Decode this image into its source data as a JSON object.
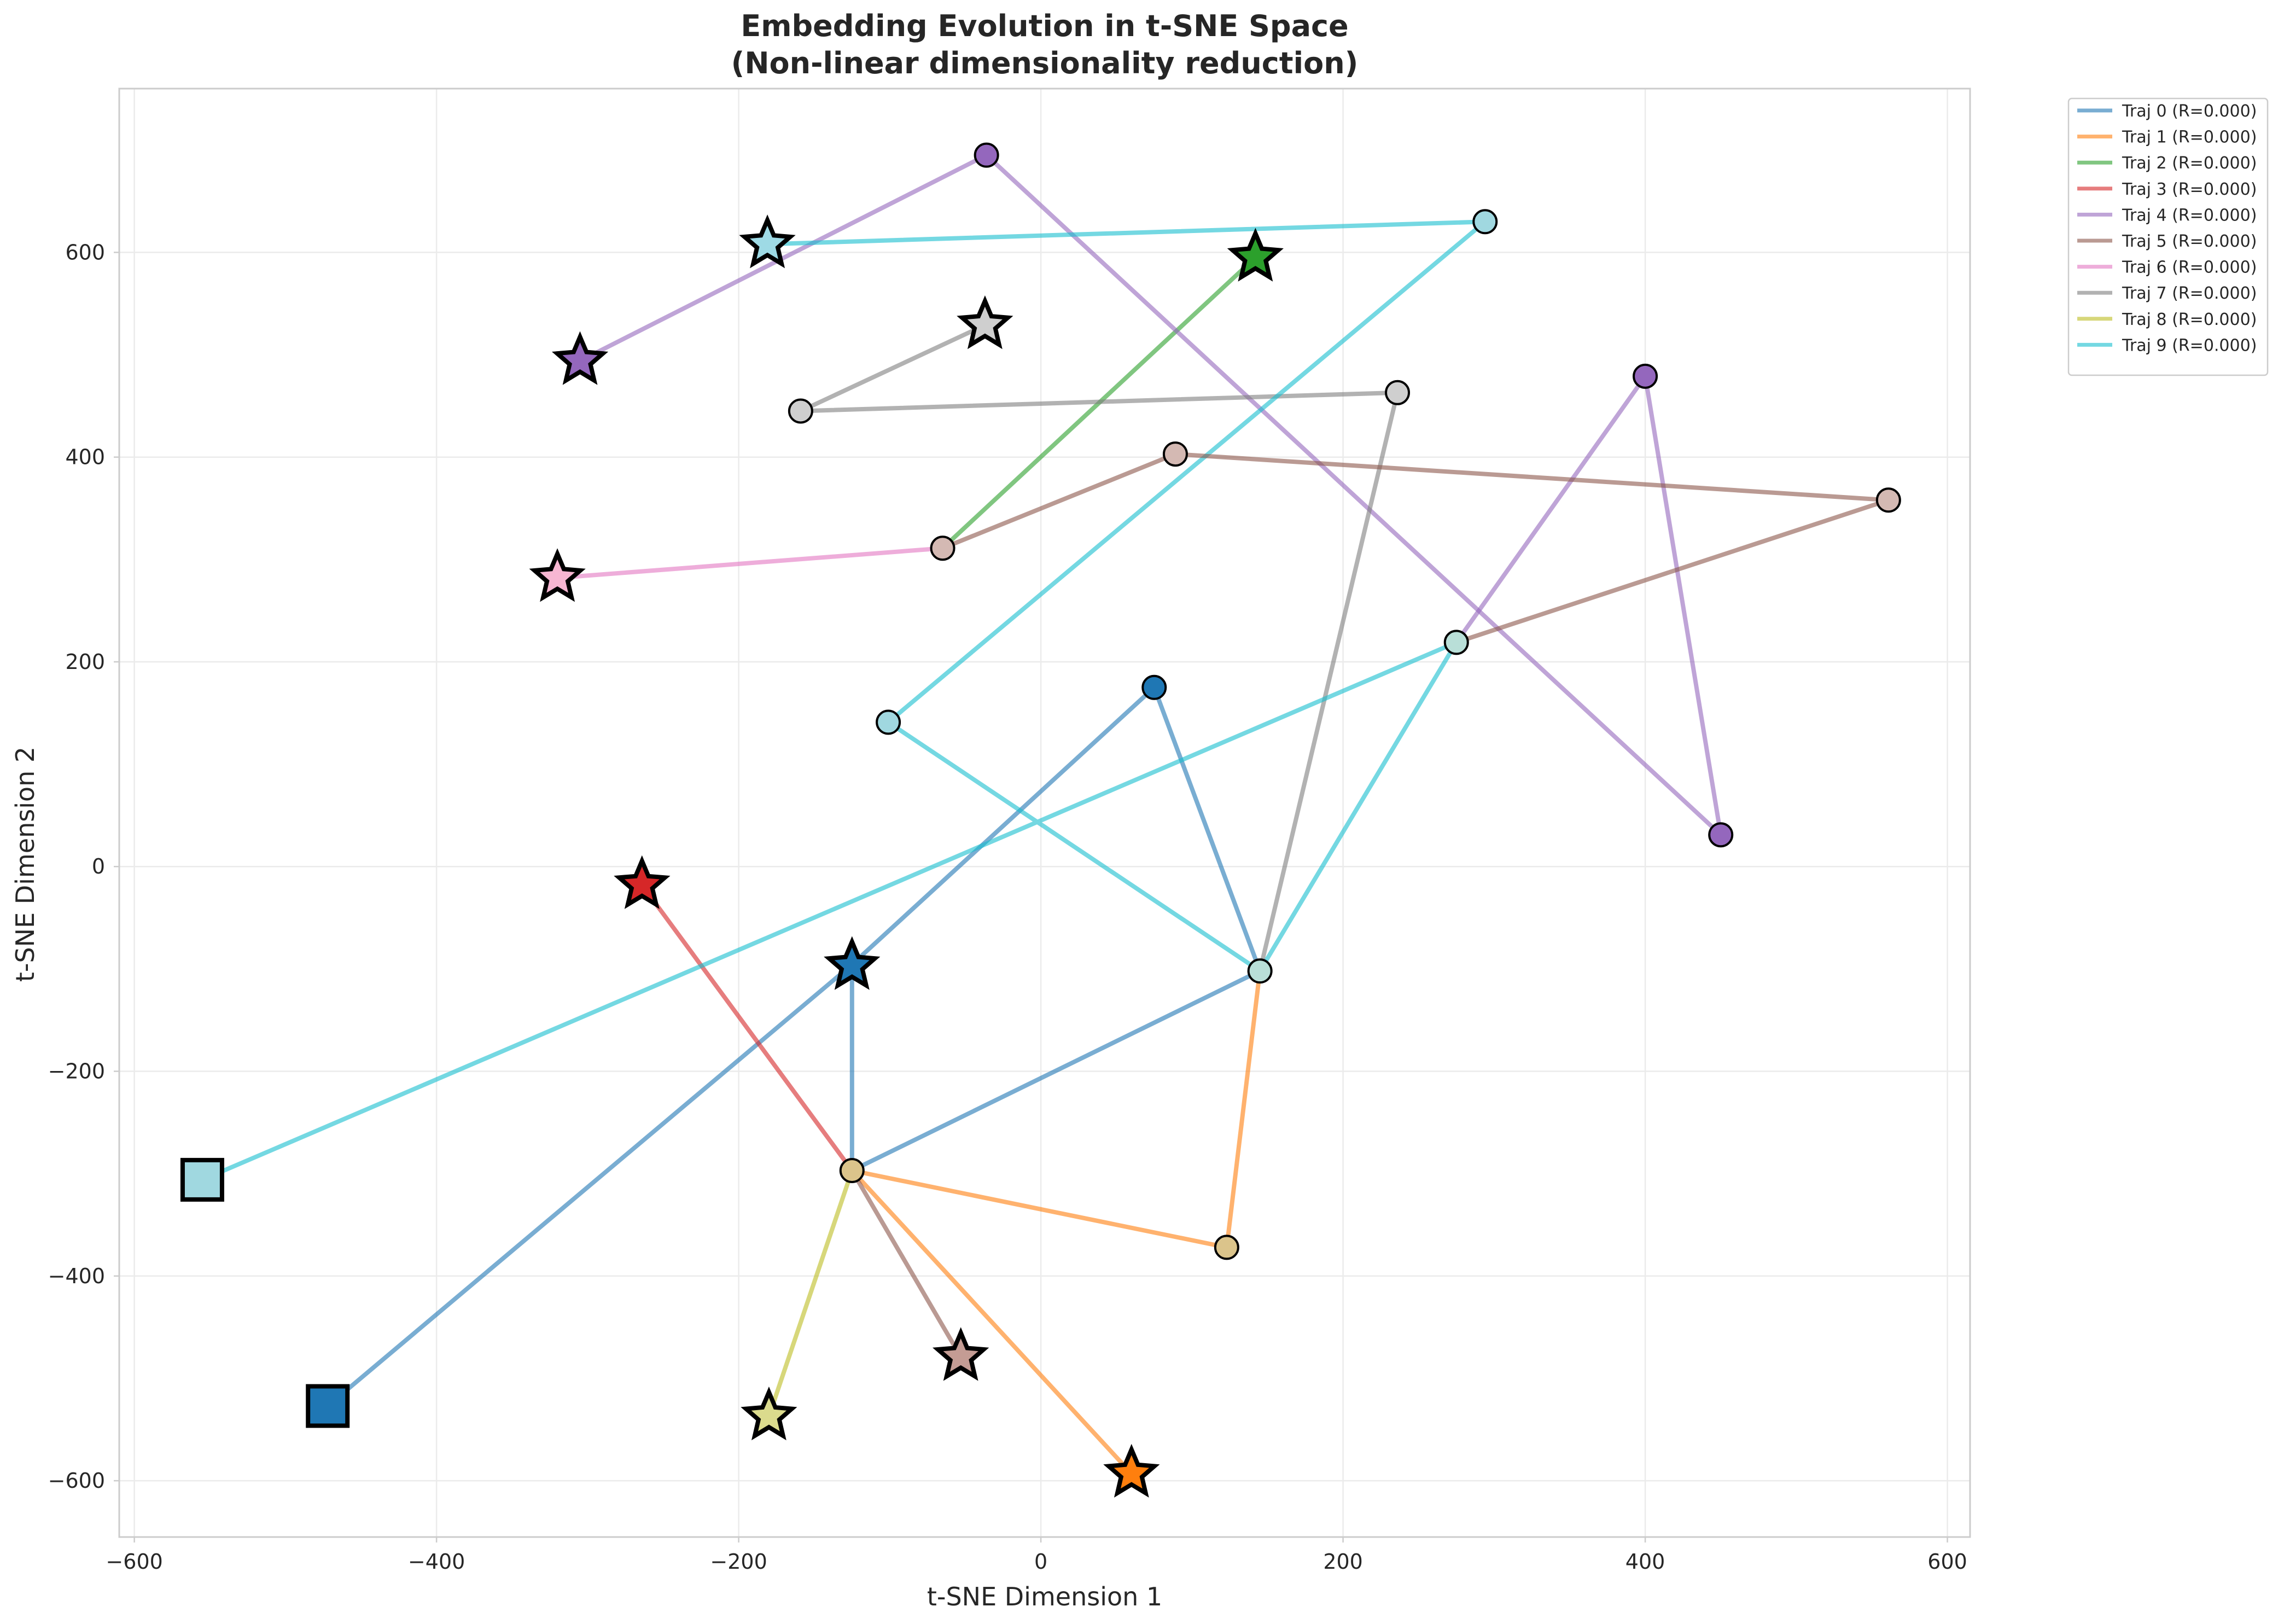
{
  "chart_data": {
    "type": "line",
    "title": "Embedding Evolution in t-SNE Space",
    "subtitle": "(Non-linear dimensionality reduction)",
    "xlabel": "t-SNE Dimension 1",
    "ylabel": "t-SNE Dimension 2",
    "xlim": [
      -610,
      615
    ],
    "ylim": [
      -655,
      760
    ],
    "xticks": [
      -600,
      -400,
      -200,
      0,
      200,
      400,
      600
    ],
    "yticks": [
      -600,
      -400,
      -200,
      0,
      200,
      400,
      600
    ],
    "xtick_labels": [
      "−600",
      "−400",
      "−200",
      "0",
      "200",
      "400",
      "600"
    ],
    "ytick_labels": [
      "−600",
      "−400",
      "−200",
      "0",
      "200",
      "400",
      "600"
    ],
    "grid": true,
    "legend_position": "outside top-right",
    "markers": "square = first point, circle = intermediate points, star = last point",
    "series": [
      {
        "name": "Traj 0 (R=0.000)",
        "color": "#1f77b4",
        "points": [
          [
            -472,
            -527
          ],
          [
            -126,
            -97
          ],
          [
            75,
            175
          ],
          [
            145,
            -102
          ],
          [
            -125,
            -297
          ],
          [
            -125,
            -97
          ]
        ]
      },
      {
        "name": "Traj 1 (R=0.000)",
        "color": "#ff7f0e",
        "points": [
          [
            145,
            -102
          ],
          [
            123,
            -372
          ],
          [
            -125,
            -297
          ],
          [
            60,
            -593
          ]
        ]
      },
      {
        "name": "Traj 2 (R=0.000)",
        "color": "#2ca02c",
        "points": [
          [
            -65,
            311
          ],
          [
            142,
            595
          ]
        ]
      },
      {
        "name": "Traj 3 (R=0.000)",
        "color": "#d62728",
        "points": [
          [
            -125,
            -297
          ],
          [
            -264,
            -18
          ]
        ]
      },
      {
        "name": "Traj 4 (R=0.000)",
        "color": "#9467bd",
        "points": [
          [
            450,
            31
          ],
          [
            -36,
            695
          ],
          [
            -305,
            494
          ]
        ]
      },
      {
        "name": "Traj 5 (R=0.000)",
        "color": "#8c564b",
        "points": [
          [
            -125,
            -297
          ],
          [
            -53,
            -479
          ]
        ]
      },
      {
        "name": "Traj 6 (R=0.000)",
        "color": "#e377c2",
        "points": [
          [
            -65,
            311
          ],
          [
            -320,
            282
          ]
        ]
      },
      {
        "name": "Traj 7 (R=0.000)",
        "color": "#7f7f7f",
        "points": [
          [
            145,
            -102
          ],
          [
            236,
            463
          ],
          [
            -159,
            445
          ],
          [
            -37,
            529
          ]
        ]
      },
      {
        "name": "Traj 8 (R=0.000)",
        "color": "#bcbd22",
        "points": [
          [
            -125,
            -297
          ],
          [
            -180,
            -537
          ]
        ]
      },
      {
        "name": "Traj 9 (R=0.000)",
        "color": "#17becf",
        "points": [
          [
            -555,
            -306
          ],
          [
            275,
            219
          ],
          [
            145,
            -102
          ],
          [
            -101,
            141
          ],
          [
            294,
            630
          ],
          [
            -181,
            608
          ]
        ]
      }
    ],
    "extra_segments": [
      {
        "color": "#9467bd",
        "points": [
          [
            450,
            31
          ],
          [
            400,
            479
          ],
          [
            275,
            219
          ]
        ]
      },
      {
        "color": "#8c564b",
        "points": [
          [
            275,
            219
          ],
          [
            561,
            358
          ],
          [
            89,
            403
          ],
          [
            -65,
            311
          ]
        ]
      }
    ],
    "start_squares": [
      {
        "x": -472,
        "y": -527,
        "color": "#1f77b4"
      },
      {
        "x": -555,
        "y": -306,
        "color": "#a0d8e0"
      }
    ],
    "circles": [
      {
        "x": 75,
        "y": 175,
        "color": "#1f77b4"
      },
      {
        "x": 145,
        "y": -102,
        "color": "#b9dfd8"
      },
      {
        "x": -125,
        "y": -297,
        "color": "#dbc48b"
      },
      {
        "x": 123,
        "y": -372,
        "color": "#dbc48b"
      },
      {
        "x": -36,
        "y": 695,
        "color": "#9467bd"
      },
      {
        "x": 450,
        "y": 31,
        "color": "#9467bd"
      },
      {
        "x": 400,
        "y": 479,
        "color": "#9467bd"
      },
      {
        "x": 275,
        "y": 219,
        "color": "#b9dfd8"
      },
      {
        "x": 561,
        "y": 358,
        "color": "#d4b9b3"
      },
      {
        "x": 89,
        "y": 403,
        "color": "#d4b9b3"
      },
      {
        "x": -65,
        "y": 311,
        "color": "#d4b9b3"
      },
      {
        "x": 236,
        "y": 463,
        "color": "#cfcfcf"
      },
      {
        "x": -159,
        "y": 445,
        "color": "#cfcfcf"
      },
      {
        "x": 294,
        "y": 630,
        "color": "#a0d8e0"
      },
      {
        "x": -101,
        "y": 141,
        "color": "#a0d8e0"
      }
    ],
    "end_stars": [
      {
        "x": -125,
        "y": -97,
        "color": "#1f77b4"
      },
      {
        "x": 60,
        "y": -593,
        "color": "#ff7f0e"
      },
      {
        "x": 142,
        "y": 595,
        "color": "#2ca02c"
      },
      {
        "x": -264,
        "y": -18,
        "color": "#d62728"
      },
      {
        "x": -305,
        "y": 494,
        "color": "#9467bd"
      },
      {
        "x": -53,
        "y": -479,
        "color": "#c49c94"
      },
      {
        "x": -320,
        "y": 282,
        "color": "#f7b6d2"
      },
      {
        "x": -37,
        "y": 529,
        "color": "#cfcfcf"
      },
      {
        "x": -180,
        "y": -537,
        "color": "#dbdb8d"
      },
      {
        "x": -181,
        "y": 608,
        "color": "#9edae5"
      }
    ]
  }
}
